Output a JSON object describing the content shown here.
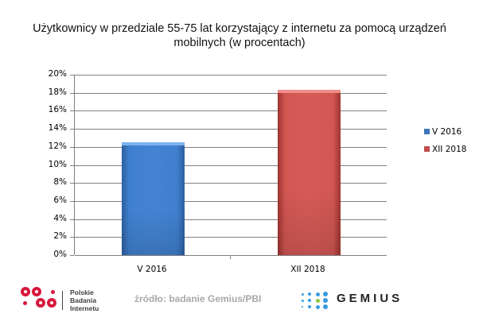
{
  "chart_data": {
    "type": "bar",
    "title": "Użytkownicy w przedziale 55-75 lat korzystający z internetu za pomocą urządzeń mobilnych (w procentach)",
    "title_lines": [
      "Użytkownicy w przedziale 55-75 lat korzystający z internetu za pomocą urządzeń",
      "mobilnych (w procentach)"
    ],
    "categories": [
      "V 2016",
      "XII 2018"
    ],
    "values": [
      12.5,
      18.3
    ],
    "colors": [
      "#4483d2",
      "#d65b57"
    ],
    "xlabel": "",
    "ylabel": "",
    "ylim": [
      0,
      20
    ],
    "yticks": [
      "0%",
      "2%",
      "4%",
      "6%",
      "8%",
      "10%",
      "12%",
      "14%",
      "16%",
      "18%",
      "20%"
    ],
    "grid": true,
    "legend": {
      "position": "right",
      "entries": [
        {
          "label": "V 2016",
          "color": "#3f74b8"
        },
        {
          "label": "XII 2018",
          "color": "#c0504d"
        }
      ]
    }
  },
  "footer": {
    "pbi_logo": {
      "line1": "Polskie",
      "line2": "Badania",
      "line3": "Internetu",
      "color": "#d8183c"
    },
    "source": "źródło: badanie Gemius/PBI",
    "gemius_logo": {
      "text": "GEMIUS",
      "dot_color": "#3a9be0",
      "accent_color": "#8cc63f"
    }
  }
}
